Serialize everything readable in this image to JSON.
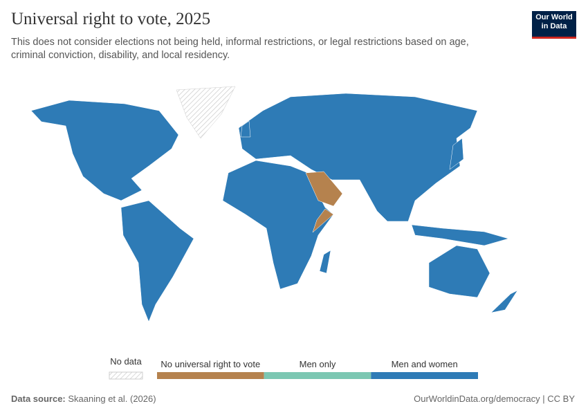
{
  "header": {
    "title": "Universal right to vote, 2025",
    "subtitle": "This does not consider elections not being held, informal restrictions, or legal restrictions based on age, criminal conviction, disability, and local residency.",
    "logo": [
      "Our World",
      "in Data"
    ]
  },
  "legend": {
    "no_data": "No data",
    "items": [
      {
        "label": "No universal right to vote",
        "color": "#b5824e"
      },
      {
        "label": "Men only",
        "color": "#7cc7b2"
      },
      {
        "label": "Men and women",
        "color": "#2e7bb6"
      }
    ]
  },
  "footer": {
    "source_label": "Data source:",
    "source": "Skaaning et al. (2026)",
    "url": "OurWorldinData.org/democracy | CC BY"
  }
}
